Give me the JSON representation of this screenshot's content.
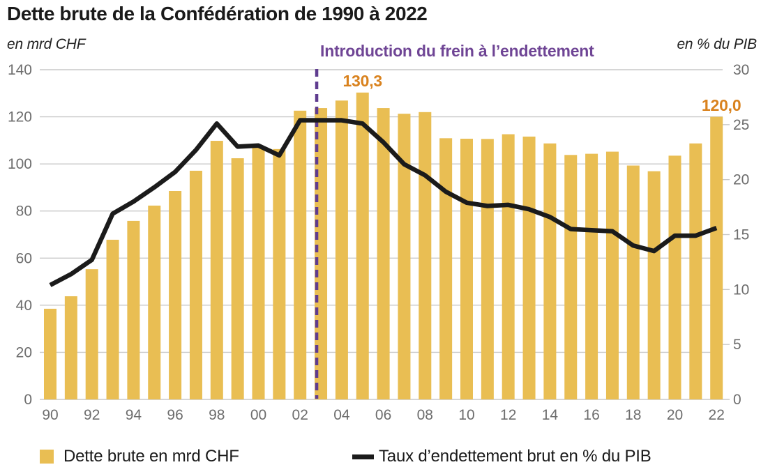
{
  "title": "Dette brute de la Confédération de 1990 à 2022",
  "left_axis": {
    "unit_label": "en mrd CHF",
    "ticks": [
      0,
      20,
      40,
      60,
      80,
      100,
      120,
      140
    ],
    "max": 140
  },
  "right_axis": {
    "unit_label": "en % du PIB",
    "ticks": [
      0,
      5,
      10,
      15,
      20,
      25,
      30
    ],
    "max": 30
  },
  "annotation": {
    "text": "Introduction du frein à l’endettement",
    "before_year": 2003
  },
  "data_labels": [
    {
      "year": 2005,
      "text": "130,3"
    },
    {
      "year": 2022,
      "text": "120,0"
    }
  ],
  "legend": {
    "items": [
      {
        "label": "Dette brute en mrd CHF",
        "swatch": "bar"
      },
      {
        "label": "Taux d’endettement brut en % du PIB",
        "swatch": "line"
      }
    ]
  },
  "colors": {
    "bar": "#e9be53",
    "line": "#1b1b1b",
    "purple_dash": "#5f3c8f",
    "purple_text": "#6f4595",
    "orange_label": "#d9821e",
    "grid": "#c9c9c9",
    "tick_text": "#6d6d6d",
    "title_text": "#1a1a1a"
  },
  "chart_data": {
    "type": "bar+line combo, dual axis",
    "x": [
      1990,
      1991,
      1992,
      1993,
      1994,
      1995,
      1996,
      1997,
      1998,
      1999,
      2000,
      2001,
      2002,
      2003,
      2004,
      2005,
      2006,
      2007,
      2008,
      2009,
      2010,
      2011,
      2012,
      2013,
      2014,
      2015,
      2016,
      2017,
      2018,
      2019,
      2020,
      2021,
      2022
    ],
    "x_tick_labels": [
      "90",
      "92",
      "94",
      "96",
      "98",
      "00",
      "02",
      "04",
      "06",
      "08",
      "10",
      "12",
      "14",
      "16",
      "18",
      "20",
      "22"
    ],
    "series": [
      {
        "name": "Dette brute en mrd CHF",
        "type": "bar",
        "axis": "left",
        "values": [
          38.5,
          43.8,
          55.3,
          67.8,
          75.8,
          82.3,
          88.5,
          97.1,
          109.8,
          102.4,
          107.4,
          106.3,
          122.6,
          123.7,
          126.9,
          130.3,
          123.7,
          121.3,
          122.0,
          110.9,
          110.7,
          110.6,
          112.6,
          111.6,
          108.7,
          103.8,
          104.3,
          105.2,
          99.3,
          96.9,
          103.5,
          108.7,
          120.0
        ]
      },
      {
        "name": "Taux d’endettement brut en % du PIB",
        "type": "line",
        "axis": "right",
        "values": [
          10.4,
          11.4,
          12.7,
          16.9,
          18.0,
          19.3,
          20.7,
          22.7,
          25.1,
          23.0,
          23.1,
          22.2,
          25.4,
          25.4,
          25.4,
          25.1,
          23.4,
          21.4,
          20.4,
          18.9,
          17.9,
          17.6,
          17.7,
          17.3,
          16.6,
          15.5,
          15.4,
          15.3,
          14.0,
          13.5,
          14.9,
          14.9,
          15.6
        ]
      }
    ],
    "title": "Dette brute de la Confédération de 1990 à 2022",
    "xlabel": "",
    "ylabel_left": "en mrd CHF",
    "ylabel_right": "en % du PIB",
    "ylim_left": [
      0,
      140
    ],
    "ylim_right": [
      0,
      30
    ],
    "grid": "horizontal, left-axis steps of 20",
    "legend_position": "bottom"
  }
}
